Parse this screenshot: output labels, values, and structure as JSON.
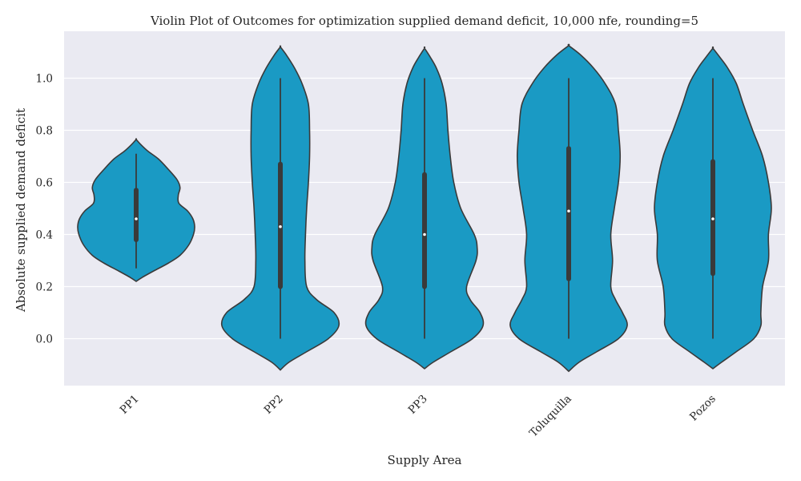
{
  "chart_data": {
    "type": "violin",
    "title": "Violin Plot of Outcomes for optimization supplied demand deficit, 10,000 nfe, rounding=5",
    "xlabel": "Supply Area",
    "ylabel": "Absolute supplied demand deficit",
    "categories": [
      "PP1",
      "PP2",
      "PP3",
      "Toluquilla",
      "Pozos"
    ],
    "ylim": [
      -0.18,
      1.18
    ],
    "yticks": [
      0.0,
      0.2,
      0.4,
      0.6,
      0.8,
      1.0
    ],
    "ytick_labels": [
      "0.0",
      "0.2",
      "0.4",
      "0.6",
      "0.8",
      "1.0"
    ],
    "grid": true,
    "style": {
      "background": "#eaeaf2",
      "grid": "#ffffff",
      "violin_fill": "#1a9ac4",
      "edge": "#3a3a3a"
    },
    "violins": [
      {
        "category": "PP1",
        "whisker": [
          0.27,
          0.71
        ],
        "q1": 0.38,
        "median": 0.46,
        "q3": 0.57,
        "profile": [
          [
            0.22,
            0.0
          ],
          [
            0.235,
            0.1
          ],
          [
            0.26,
            0.3
          ],
          [
            0.29,
            0.55
          ],
          [
            0.32,
            0.75
          ],
          [
            0.36,
            0.9
          ],
          [
            0.4,
            0.98
          ],
          [
            0.43,
            1.0
          ],
          [
            0.46,
            0.97
          ],
          [
            0.49,
            0.88
          ],
          [
            0.52,
            0.73
          ],
          [
            0.55,
            0.72
          ],
          [
            0.58,
            0.75
          ],
          [
            0.61,
            0.7
          ],
          [
            0.65,
            0.55
          ],
          [
            0.69,
            0.38
          ],
          [
            0.72,
            0.2
          ],
          [
            0.745,
            0.08
          ],
          [
            0.765,
            0.0
          ]
        ]
      },
      {
        "category": "PP2",
        "whisker": [
          0.0,
          1.0
        ],
        "q1": 0.2,
        "median": 0.43,
        "q3": 0.67,
        "profile": [
          [
            -0.12,
            0.0
          ],
          [
            -0.09,
            0.15
          ],
          [
            -0.05,
            0.45
          ],
          [
            0.0,
            0.82
          ],
          [
            0.05,
            1.0
          ],
          [
            0.1,
            0.92
          ],
          [
            0.15,
            0.62
          ],
          [
            0.2,
            0.45
          ],
          [
            0.3,
            0.42
          ],
          [
            0.4,
            0.43
          ],
          [
            0.5,
            0.45
          ],
          [
            0.6,
            0.48
          ],
          [
            0.7,
            0.5
          ],
          [
            0.8,
            0.5
          ],
          [
            0.9,
            0.48
          ],
          [
            0.98,
            0.37
          ],
          [
            1.04,
            0.24
          ],
          [
            1.09,
            0.1
          ],
          [
            1.12,
            0.0
          ]
        ]
      },
      {
        "category": "PP3",
        "whisker": [
          0.0,
          1.0
        ],
        "q1": 0.2,
        "median": 0.4,
        "q3": 0.63,
        "profile": [
          [
            -0.115,
            0.0
          ],
          [
            -0.09,
            0.15
          ],
          [
            -0.05,
            0.45
          ],
          [
            0.0,
            0.82
          ],
          [
            0.05,
            1.0
          ],
          [
            0.1,
            0.95
          ],
          [
            0.15,
            0.78
          ],
          [
            0.2,
            0.72
          ],
          [
            0.3,
            0.88
          ],
          [
            0.35,
            0.9
          ],
          [
            0.4,
            0.85
          ],
          [
            0.5,
            0.62
          ],
          [
            0.6,
            0.5
          ],
          [
            0.7,
            0.44
          ],
          [
            0.8,
            0.4
          ],
          [
            0.9,
            0.37
          ],
          [
            0.98,
            0.3
          ],
          [
            1.04,
            0.2
          ],
          [
            1.08,
            0.1
          ],
          [
            1.115,
            0.0
          ]
        ]
      },
      {
        "category": "Toluquilla",
        "whisker": [
          0.0,
          1.0
        ],
        "q1": 0.23,
        "median": 0.49,
        "q3": 0.73,
        "profile": [
          [
            -0.125,
            0.0
          ],
          [
            -0.09,
            0.18
          ],
          [
            -0.05,
            0.48
          ],
          [
            0.0,
            0.85
          ],
          [
            0.05,
            1.0
          ],
          [
            0.1,
            0.92
          ],
          [
            0.15,
            0.8
          ],
          [
            0.2,
            0.72
          ],
          [
            0.3,
            0.75
          ],
          [
            0.4,
            0.72
          ],
          [
            0.5,
            0.78
          ],
          [
            0.6,
            0.85
          ],
          [
            0.7,
            0.88
          ],
          [
            0.8,
            0.85
          ],
          [
            0.9,
            0.8
          ],
          [
            0.98,
            0.62
          ],
          [
            1.04,
            0.42
          ],
          [
            1.09,
            0.2
          ],
          [
            1.125,
            0.0
          ]
        ]
      },
      {
        "category": "Pozos",
        "whisker": [
          0.0,
          1.0
        ],
        "q1": 0.25,
        "median": 0.46,
        "q3": 0.68,
        "profile": [
          [
            -0.115,
            0.0
          ],
          [
            -0.09,
            0.15
          ],
          [
            -0.05,
            0.4
          ],
          [
            0.0,
            0.7
          ],
          [
            0.05,
            0.82
          ],
          [
            0.1,
            0.82
          ],
          [
            0.2,
            0.85
          ],
          [
            0.3,
            0.95
          ],
          [
            0.4,
            0.95
          ],
          [
            0.5,
            1.0
          ],
          [
            0.6,
            0.95
          ],
          [
            0.7,
            0.85
          ],
          [
            0.8,
            0.68
          ],
          [
            0.9,
            0.52
          ],
          [
            0.98,
            0.4
          ],
          [
            1.04,
            0.25
          ],
          [
            1.08,
            0.12
          ],
          [
            1.115,
            0.0
          ]
        ]
      }
    ]
  }
}
